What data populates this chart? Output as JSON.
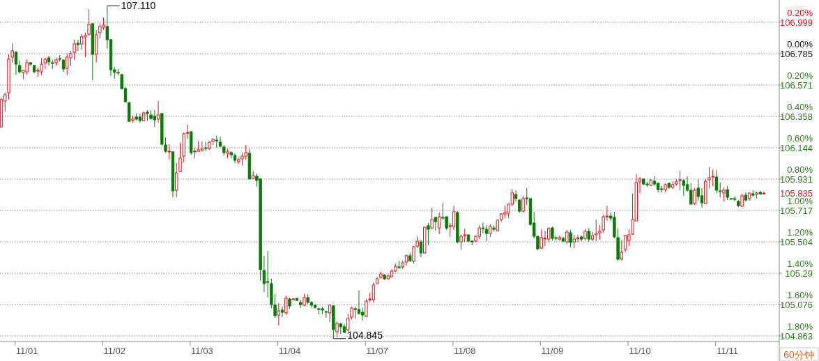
{
  "chart_data": {
    "type": "candlestick",
    "categories": [
      null,
      null,
      null,
      null,
      null,
      null,
      null,
      "11/01",
      null,
      null,
      null,
      null,
      null,
      null,
      null,
      null,
      null,
      null,
      null,
      null,
      null,
      null,
      null,
      null,
      null,
      null,
      null,
      null,
      null,
      null,
      null,
      "11/02",
      null,
      null,
      null,
      null,
      null,
      null,
      null,
      null,
      null,
      null,
      null,
      null,
      null,
      null,
      null,
      null,
      null,
      null,
      null,
      null,
      null,
      null,
      null,
      "11/03",
      null,
      null,
      null,
      null,
      null,
      null,
      null,
      null,
      null,
      null,
      null,
      null,
      null,
      null,
      null,
      null,
      null,
      null,
      null,
      null,
      null,
      null,
      null,
      "11/04",
      null,
      null,
      null,
      null,
      null,
      null,
      null,
      null,
      null,
      null,
      null,
      null,
      null,
      null,
      null,
      null,
      null,
      null,
      null,
      null,
      null,
      null,
      null,
      "11/07",
      null,
      null,
      null,
      null,
      null,
      null,
      null,
      null,
      null,
      null,
      null,
      null,
      null,
      null,
      null,
      null,
      null,
      null,
      null,
      null,
      null,
      null,
      null,
      "11/08",
      null,
      null,
      null,
      null,
      null,
      null,
      null,
      null,
      null,
      null,
      null,
      null,
      null,
      null,
      null,
      null,
      null,
      null,
      null,
      null,
      null,
      null,
      null,
      "11/09",
      null,
      null,
      null,
      null,
      null,
      null,
      null,
      null,
      null,
      null,
      null,
      null,
      null,
      null,
      null,
      null,
      null,
      null,
      null,
      null,
      null,
      null,
      null,
      "11/10",
      null,
      null,
      null,
      null,
      null,
      null,
      null,
      null,
      null,
      null,
      null,
      null,
      null,
      null,
      null,
      null,
      null,
      null,
      null,
      null,
      null,
      null,
      null,
      "11/11",
      null,
      null,
      null,
      null,
      null,
      null,
      null,
      null,
      null,
      null
    ],
    "ohlc": [
      [
        106.286,
        106.486,
        106.282,
        106.472
      ],
      [
        106.462,
        106.519,
        106.391,
        106.505
      ],
      [
        106.519,
        106.78,
        106.472,
        106.747
      ],
      [
        106.761,
        106.856,
        106.723,
        106.804
      ],
      [
        106.794,
        106.804,
        106.642,
        106.713
      ],
      [
        106.704,
        106.737,
        106.652,
        106.661
      ],
      [
        106.657,
        106.675,
        106.614,
        106.671
      ],
      [
        106.661,
        106.747,
        106.642,
        106.723
      ],
      [
        106.723,
        106.728,
        106.704,
        106.713
      ],
      [
        106.704,
        106.709,
        106.652,
        106.661
      ],
      [
        106.666,
        106.685,
        106.628,
        106.671
      ],
      [
        106.661,
        106.756,
        106.638,
        106.713
      ],
      [
        106.723,
        106.756,
        106.68,
        106.747
      ],
      [
        106.756,
        106.77,
        106.704,
        106.728
      ],
      [
        106.723,
        106.742,
        106.68,
        106.718
      ],
      [
        106.723,
        106.756,
        106.704,
        106.742
      ],
      [
        106.751,
        106.775,
        106.732,
        106.747
      ],
      [
        106.742,
        106.742,
        106.661,
        106.68
      ],
      [
        106.685,
        106.785,
        106.638,
        106.761
      ],
      [
        106.756,
        106.804,
        106.699,
        106.785
      ],
      [
        106.794,
        106.88,
        106.742,
        106.851
      ],
      [
        106.856,
        106.88,
        106.804,
        106.846
      ],
      [
        106.851,
        106.917,
        106.813,
        106.899
      ],
      [
        106.899,
        106.927,
        106.761,
        106.908
      ],
      [
        106.917,
        107.088,
        106.908,
        106.984
      ],
      [
        106.989,
        106.989,
        106.604,
        106.78
      ],
      [
        106.78,
        106.946,
        106.723,
        106.913
      ],
      [
        106.927,
        106.993,
        106.889,
        106.97
      ],
      [
        106.965,
        107.031,
        106.946,
        106.979
      ],
      [
        106.97,
        107.11,
        106.818,
        106.88
      ],
      [
        106.88,
        106.884,
        106.633,
        106.675
      ],
      [
        106.675,
        106.694,
        106.614,
        106.657
      ],
      [
        106.652,
        106.68,
        106.638,
        106.657
      ],
      [
        106.642,
        106.647,
        106.538,
        106.547
      ],
      [
        106.547,
        106.557,
        106.452,
        106.457
      ],
      [
        106.452,
        106.452,
        106.32,
        106.324
      ],
      [
        106.329,
        106.362,
        106.315,
        106.339
      ],
      [
        106.353,
        106.377,
        106.329,
        106.339
      ],
      [
        106.353,
        106.377,
        106.315,
        106.329
      ],
      [
        106.329,
        106.391,
        106.324,
        106.381
      ],
      [
        106.386,
        106.4,
        106.329,
        106.377
      ],
      [
        106.367,
        106.4,
        106.334,
        106.343
      ],
      [
        106.358,
        106.4,
        106.286,
        106.334
      ],
      [
        106.339,
        106.462,
        106.315,
        106.367
      ],
      [
        106.377,
        106.381,
        106.158,
        106.168
      ],
      [
        106.163,
        106.215,
        106.111,
        106.12
      ],
      [
        106.116,
        106.168,
        106.063,
        106.12
      ],
      [
        106.116,
        106.12,
        105.807,
        105.85
      ],
      [
        105.855,
        106.04,
        105.807,
        105.973
      ],
      [
        105.983,
        106.177,
        105.978,
        106.073
      ],
      [
        106.087,
        106.248,
        106.044,
        106.239
      ],
      [
        106.244,
        106.301,
        106.206,
        106.248
      ],
      [
        106.253,
        106.258,
        106.097,
        106.111
      ],
      [
        106.119,
        106.144,
        106.073,
        106.121
      ],
      [
        106.12,
        106.187,
        106.116,
        106.13
      ],
      [
        106.125,
        106.187,
        106.12,
        106.135
      ],
      [
        106.144,
        106.182,
        106.12,
        106.139
      ],
      [
        106.139,
        106.187,
        106.13,
        106.182
      ],
      [
        106.187,
        106.211,
        106.163,
        106.201
      ],
      [
        106.196,
        106.225,
        106.144,
        106.192
      ],
      [
        106.182,
        106.22,
        106.149,
        106.154
      ],
      [
        106.149,
        106.163,
        106.092,
        106.111
      ],
      [
        106.106,
        106.139,
        106.073,
        106.116
      ],
      [
        106.111,
        106.12,
        106.073,
        106.097
      ],
      [
        106.092,
        106.106,
        106.04,
        106.059
      ],
      [
        106.049,
        106.078,
        106.035,
        106.063
      ],
      [
        106.068,
        106.111,
        106.025,
        106.087
      ],
      [
        106.087,
        106.163,
        106.063,
        106.111
      ],
      [
        106.106,
        106.139,
        105.931,
        105.931
      ],
      [
        105.935,
        105.987,
        105.931,
        105.954
      ],
      [
        105.95,
        105.968,
        105.878,
        105.921
      ],
      [
        105.931,
        105.935,
        105.238,
        105.314
      ],
      [
        105.309,
        105.409,
        105.162,
        105.219
      ],
      [
        105.233,
        105.442,
        105.124,
        105.228
      ],
      [
        105.219,
        105.252,
        105.053,
        105.076
      ],
      [
        105.072,
        105.148,
        104.986,
        105.001
      ],
      [
        105.005,
        105.086,
        104.934,
        105.034
      ],
      [
        105.039,
        105.062,
        104.991,
        105.024
      ],
      [
        105.02,
        105.138,
        105.005,
        105.119
      ],
      [
        105.114,
        105.124,
        105.048,
        105.067
      ],
      [
        105.113,
        105.119,
        105.11,
        105.115
      ],
      [
        105.119,
        105.124,
        105.1,
        105.105
      ],
      [
        105.091,
        105.11,
        105.053,
        105.076
      ],
      [
        105.072,
        105.148,
        105.067,
        105.124
      ],
      [
        105.124,
        105.148,
        105.081,
        105.091
      ],
      [
        105.091,
        105.1,
        105.053,
        105.072
      ],
      [
        105.072,
        105.076,
        105.048,
        105.057
      ],
      [
        105.048,
        105.053,
        105.01,
        105.043
      ],
      [
        105.048,
        105.062,
        105.01,
        105.039
      ],
      [
        105.029,
        105.034,
        104.986,
        105.027
      ],
      [
        105.02,
        105.076,
        104.958,
        105.072
      ],
      [
        105.067,
        105.072,
        104.845,
        104.906
      ],
      [
        104.891,
        104.962,
        104.853,
        104.948
      ],
      [
        104.944,
        104.953,
        104.877,
        104.925
      ],
      [
        104.925,
        104.944,
        104.882,
        104.887
      ],
      [
        104.906,
        105.015,
        104.887,
        104.982
      ],
      [
        104.991,
        105.062,
        104.977,
        105.053
      ],
      [
        105.048,
        105.062,
        104.982,
        105.043
      ],
      [
        105.043,
        105.171,
        105.01,
        105.015
      ],
      [
        105.024,
        105.053,
        104.967,
        105.005
      ],
      [
        104.996,
        105.114,
        104.991,
        105.1
      ],
      [
        105.11,
        105.157,
        105.091,
        105.114
      ],
      [
        105.11,
        105.228,
        105.086,
        105.209
      ],
      [
        105.219,
        105.266,
        105.219,
        105.252
      ],
      [
        105.262,
        105.299,
        105.252,
        105.285
      ],
      [
        105.276,
        105.285,
        105.243,
        105.252
      ],
      [
        105.252,
        105.285,
        105.248,
        105.271
      ],
      [
        105.266,
        105.318,
        105.262,
        105.304
      ],
      [
        105.304,
        105.356,
        105.299,
        105.337
      ],
      [
        105.333,
        105.375,
        105.318,
        105.328
      ],
      [
        105.333,
        105.375,
        105.318,
        105.361
      ],
      [
        105.366,
        105.418,
        105.342,
        105.409
      ],
      [
        105.409,
        105.428,
        105.366,
        105.375
      ],
      [
        105.371,
        105.475,
        105.356,
        105.47
      ],
      [
        105.475,
        105.541,
        105.461,
        105.508
      ],
      [
        105.503,
        105.518,
        105.399,
        105.428
      ],
      [
        105.428,
        105.608,
        105.423,
        105.603
      ],
      [
        105.613,
        105.632,
        105.48,
        105.589
      ],
      [
        105.598,
        105.736,
        105.589,
        105.655
      ],
      [
        105.67,
        105.674,
        105.579,
        105.641
      ],
      [
        105.598,
        105.703,
        105.556,
        105.674
      ],
      [
        105.67,
        105.769,
        105.655,
        105.665
      ],
      [
        105.674,
        105.679,
        105.584,
        105.598
      ],
      [
        105.608,
        105.632,
        105.537,
        105.613
      ],
      [
        105.608,
        105.75,
        105.584,
        105.708
      ],
      [
        105.703,
        105.712,
        105.494,
        105.503
      ],
      [
        105.503,
        105.551,
        105.451,
        105.541
      ],
      [
        105.546,
        105.594,
        105.503,
        105.551
      ],
      [
        105.551,
        105.551,
        105.503,
        105.508
      ],
      [
        105.508,
        105.513,
        105.48,
        105.503
      ],
      [
        105.508,
        105.546,
        105.503,
        105.541
      ],
      [
        105.541,
        105.617,
        105.522,
        105.598
      ],
      [
        105.598,
        105.636,
        105.56,
        105.596
      ],
      [
        105.589,
        105.617,
        105.508,
        105.56
      ],
      [
        105.56,
        105.622,
        105.537,
        105.608
      ],
      [
        105.598,
        105.617,
        105.575,
        105.589
      ],
      [
        105.579,
        105.655,
        105.575,
        105.651
      ],
      [
        105.655,
        105.698,
        105.641,
        105.693
      ],
      [
        105.693,
        105.75,
        105.665,
        105.703
      ],
      [
        105.698,
        105.764,
        105.665,
        105.76
      ],
      [
        105.76,
        105.864,
        105.75,
        105.836
      ],
      [
        105.826,
        105.855,
        105.779,
        105.798
      ],
      [
        105.788,
        105.793,
        105.703,
        105.712
      ],
      [
        105.712,
        105.812,
        105.703,
        105.798
      ],
      [
        105.802,
        105.869,
        105.755,
        105.798
      ],
      [
        105.798,
        105.798,
        105.613,
        105.622
      ],
      [
        105.632,
        105.708,
        105.527,
        105.541
      ],
      [
        105.541,
        105.546,
        105.447,
        105.456
      ],
      [
        105.461,
        105.589,
        105.456,
        105.532
      ],
      [
        105.526,
        105.579,
        105.475,
        105.528
      ],
      [
        105.522,
        105.603,
        105.503,
        105.594
      ],
      [
        105.598,
        105.608,
        105.513,
        105.527
      ],
      [
        105.532,
        105.546,
        105.513,
        105.53
      ],
      [
        105.522,
        105.546,
        105.513,
        105.532
      ],
      [
        105.527,
        105.537,
        105.503,
        105.508
      ],
      [
        105.503,
        105.584,
        105.489,
        105.57
      ],
      [
        105.565,
        105.584,
        105.466,
        105.499
      ],
      [
        105.503,
        105.551,
        105.461,
        105.522
      ],
      [
        105.525,
        105.551,
        105.503,
        105.53
      ],
      [
        105.537,
        105.546,
        105.508,
        105.522
      ],
      [
        105.527,
        105.594,
        105.513,
        105.575
      ],
      [
        105.575,
        105.598,
        105.503,
        105.522
      ],
      [
        105.522,
        105.57,
        105.508,
        105.546
      ],
      [
        105.551,
        105.655,
        105.508,
        105.56
      ],
      [
        105.565,
        105.617,
        105.518,
        105.575
      ],
      [
        105.584,
        105.689,
        105.565,
        105.674
      ],
      [
        105.674,
        105.75,
        105.646,
        105.679
      ],
      [
        105.679,
        105.703,
        105.646,
        105.665
      ],
      [
        105.67,
        105.708,
        105.527,
        105.537
      ],
      [
        105.532,
        105.594,
        105.375,
        105.385
      ],
      [
        105.385,
        105.513,
        105.38,
        105.432
      ],
      [
        105.451,
        105.551,
        105.432,
        105.546
      ],
      [
        105.513,
        105.589,
        105.475,
        105.551
      ],
      [
        105.556,
        105.831,
        105.551,
        105.655
      ],
      [
        105.646,
        105.964,
        105.646,
        105.907
      ],
      [
        105.912,
        105.945,
        105.836,
        105.931
      ],
      [
        105.931,
        105.935,
        105.888,
        105.897
      ],
      [
        105.897,
        105.912,
        105.878,
        105.893
      ],
      [
        105.888,
        105.931,
        105.883,
        105.921
      ],
      [
        105.916,
        105.95,
        105.883,
        105.897
      ],
      [
        105.902,
        105.907,
        105.84,
        105.859
      ],
      [
        105.864,
        105.883,
        105.84,
        105.862
      ],
      [
        105.859,
        105.902,
        105.84,
        105.893
      ],
      [
        105.902,
        105.907,
        105.864,
        105.874
      ],
      [
        105.874,
        105.916,
        105.864,
        105.893
      ],
      [
        105.897,
        105.931,
        105.888,
        105.912
      ],
      [
        105.921,
        105.987,
        105.855,
        105.926
      ],
      [
        105.921,
        105.931,
        105.817,
        105.888
      ],
      [
        105.893,
        105.95,
        105.845,
        105.855
      ],
      [
        105.855,
        105.902,
        105.76,
        105.76
      ],
      [
        105.764,
        105.869,
        105.755,
        105.855
      ],
      [
        105.869,
        105.931,
        105.783,
        105.812
      ],
      [
        105.817,
        105.869,
        105.736,
        105.769
      ],
      [
        105.764,
        105.931,
        105.76,
        105.916
      ],
      [
        105.926,
        106.011,
        105.869,
        105.94
      ],
      [
        105.945,
        105.997,
        105.883,
        105.95
      ],
      [
        105.945,
        105.992,
        105.836,
        105.855
      ],
      [
        105.85,
        105.907,
        105.807,
        105.845
      ],
      [
        105.836,
        105.874,
        105.779,
        105.855
      ],
      [
        105.859,
        105.883,
        105.788,
        105.807
      ],
      [
        105.798,
        105.802,
        105.793,
        105.796
      ],
      [
        105.798,
        105.812,
        105.779,
        105.793
      ],
      [
        105.779,
        105.788,
        105.741,
        105.75
      ],
      [
        105.746,
        105.831,
        105.741,
        105.817
      ],
      [
        105.821,
        105.84,
        105.779,
        105.788
      ],
      [
        105.798,
        105.84,
        105.783,
        105.836
      ],
      [
        105.831,
        105.855,
        105.812,
        105.821
      ],
      [
        105.826,
        105.845,
        105.798,
        105.836
      ],
      [
        105.84,
        105.85,
        105.821,
        105.831
      ],
      [
        105.831,
        105.845,
        105.826,
        105.835
      ]
    ],
    "ylim": [
      104.825,
      107.15
    ],
    "yticks": [
      106.999,
      106.785,
      106.571,
      106.358,
      106.144,
      105.931,
      105.835,
      105.717,
      105.504,
      105.29,
      105.076,
      104.863
    ],
    "y2lim": [
      -1.835,
      0.342
    ],
    "y2ticks": [
      {
        "value": 0.2,
        "label": "0.20%"
      },
      {
        "value": 0,
        "label": "0.00%"
      },
      {
        "value": -0.2,
        "label": "0.20%"
      },
      {
        "value": -0.4,
        "label": "0.40%"
      },
      {
        "value": -0.6,
        "label": "0.60%"
      },
      {
        "value": -0.8,
        "label": "0.80%"
      },
      {
        "value": -1.0,
        "label": "1.00%"
      },
      {
        "value": -1.2,
        "label": "1.20%"
      },
      {
        "value": -1.4,
        "label": "1.40%"
      },
      {
        "value": -1.6,
        "label": "1.60%"
      },
      {
        "value": -1.8,
        "label": "1.80%"
      }
    ],
    "grid": "y",
    "annotations": [
      "107.110",
      "104.845",
      "60分钟"
    ]
  }
}
